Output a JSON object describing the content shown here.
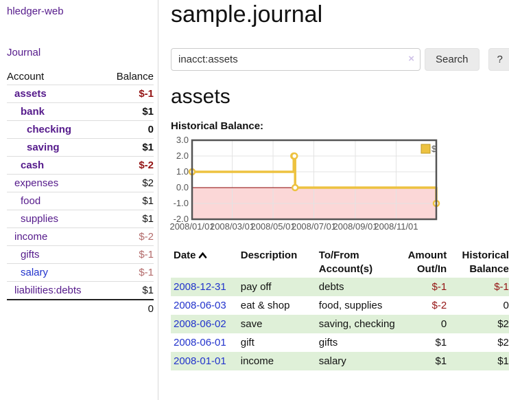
{
  "app": {
    "title": "hledger-web"
  },
  "nav": {
    "journal_label": "Journal"
  },
  "sidebar": {
    "headers": {
      "account": "Account",
      "balance": "Balance"
    },
    "accounts": [
      {
        "name": "assets",
        "balance": "$-1",
        "level": 0,
        "bold": true,
        "bal_color": "neg-strong",
        "link_color": "purple"
      },
      {
        "name": "bank",
        "balance": "$1",
        "level": 1,
        "bold": true,
        "bal_color": "normal",
        "link_color": "purple"
      },
      {
        "name": "checking",
        "balance": "0",
        "level": 2,
        "bold": true,
        "bal_color": "normal",
        "link_color": "purple"
      },
      {
        "name": "saving",
        "balance": "$1",
        "level": 2,
        "bold": true,
        "bal_color": "normal",
        "link_color": "purple"
      },
      {
        "name": "cash",
        "balance": "$-2",
        "level": 1,
        "bold": true,
        "bal_color": "neg-strong",
        "link_color": "purple"
      },
      {
        "name": "expenses",
        "balance": "$2",
        "level": 0,
        "bold": false,
        "bal_color": "normal",
        "link_color": "purple"
      },
      {
        "name": "food",
        "balance": "$1",
        "level": 1,
        "bold": false,
        "bal_color": "normal",
        "link_color": "purple"
      },
      {
        "name": "supplies",
        "balance": "$1",
        "level": 1,
        "bold": false,
        "bal_color": "normal",
        "link_color": "purple"
      },
      {
        "name": "income",
        "balance": "$-2",
        "level": 0,
        "bold": false,
        "bal_color": "neg-soft",
        "link_color": "purple"
      },
      {
        "name": "gifts",
        "balance": "$-1",
        "level": 1,
        "bold": false,
        "bal_color": "neg-soft",
        "link_color": "purple"
      },
      {
        "name": "salary",
        "balance": "$-1",
        "level": 1,
        "bold": false,
        "bal_color": "neg-soft",
        "link_color": "blue"
      },
      {
        "name": "liabilities:debts",
        "balance": "$1",
        "level": 0,
        "bold": false,
        "bal_color": "normal",
        "link_color": "purple"
      }
    ],
    "total": "0"
  },
  "main": {
    "title": "sample.journal",
    "search": {
      "value": "inacct:assets",
      "clear_icon": "×",
      "search_button": "Search",
      "help_button": "?"
    },
    "account_heading": "assets",
    "chart_heading": "Historical Balance:"
  },
  "chart_data": {
    "type": "line",
    "title": "Historical Balance:",
    "legend": [
      {
        "label": "$",
        "color": "#edc240"
      }
    ],
    "legend_position": "top-right",
    "grid": true,
    "x_range_days": [
      0,
      365
    ],
    "x_ticks": [
      {
        "label": "2008/01/01",
        "day": 0
      },
      {
        "label": "2008/03/01",
        "day": 60
      },
      {
        "label": "2008/05/01",
        "day": 121
      },
      {
        "label": "2008/07/01",
        "day": 182
      },
      {
        "label": "2008/09/01",
        "day": 244
      },
      {
        "label": "2008/11/01",
        "day": 305
      }
    ],
    "y_ticks": [
      3,
      2,
      1,
      0,
      -1,
      -2
    ],
    "ylim": [
      -2,
      3
    ],
    "series": [
      {
        "name": "$",
        "color": "#edc240",
        "step": true,
        "points": [
          {
            "date": "2008-01-01",
            "day": 0,
            "value": 1
          },
          {
            "date": "2008-06-01",
            "day": 152,
            "value": 2
          },
          {
            "date": "2008-06-02",
            "day": 153,
            "value": 2
          },
          {
            "date": "2008-06-03",
            "day": 154,
            "value": 0
          },
          {
            "date": "2008-12-31",
            "day": 365,
            "value": -1
          }
        ]
      }
    ],
    "negative_region_color": "#fbd7d7",
    "zero_line_color": "#8b0000",
    "axis_label_color": "#545454",
    "grid_color": "#e3e3e3",
    "border_color": "#545454"
  },
  "register": {
    "headers": {
      "date": "Date",
      "description": "Description",
      "accounts": "To/From Account(s)",
      "amount": "Amount Out/In",
      "balance": "Historical Balance"
    },
    "rows": [
      {
        "date": "2008-12-31",
        "description": "pay off",
        "accounts": "debts",
        "amount": "$-1",
        "amount_neg": true,
        "balance": "$-1",
        "balance_neg": true,
        "shaded": true
      },
      {
        "date": "2008-06-03",
        "description": "eat & shop",
        "accounts": "food, supplies",
        "amount": "$-2",
        "amount_neg": true,
        "balance": "0",
        "balance_neg": false,
        "shaded": false
      },
      {
        "date": "2008-06-02",
        "description": "save",
        "accounts": "saving, checking",
        "amount": "0",
        "amount_neg": false,
        "balance": "$2",
        "balance_neg": false,
        "shaded": true
      },
      {
        "date": "2008-06-01",
        "description": "gift",
        "accounts": "gifts",
        "amount": "$1",
        "amount_neg": false,
        "balance": "$2",
        "balance_neg": false,
        "shaded": false
      },
      {
        "date": "2008-01-01",
        "description": "income",
        "accounts": "salary",
        "amount": "$1",
        "amount_neg": false,
        "balance": "$1",
        "balance_neg": false,
        "shaded": true
      }
    ]
  }
}
